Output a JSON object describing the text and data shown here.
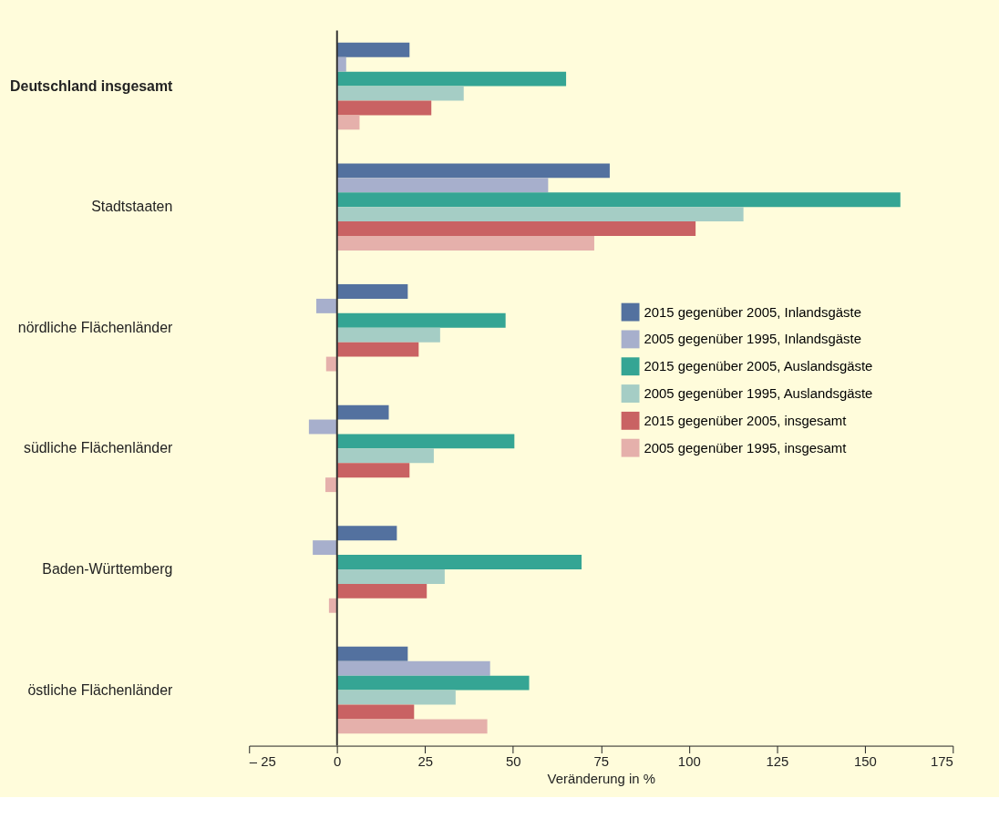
{
  "chart_data": {
    "type": "bar",
    "orientation": "horizontal",
    "xlabel": "Veränderung in %",
    "categories": [
      "Deutschland insgesamt",
      "Stadtstaaten",
      "nördliche Flächenländer",
      "südliche Flächenländer",
      "Baden-Württemberg",
      "östliche Flächenländer"
    ],
    "series": [
      {
        "name": "2015 gegenüber 2005, Inlandsgäste",
        "color": "#53719f",
        "values": [
          20.6,
          77.5,
          20.1,
          14.7,
          17.0,
          20.1
        ]
      },
      {
        "name": "2005 gegenüber 1995, Inlandsgäste",
        "color": "#a7afcc",
        "values": [
          2.6,
          60.0,
          -5.9,
          -8.0,
          -6.9,
          43.5
        ]
      },
      {
        "name": "2015 gegenüber 2005, Auslandsgäste",
        "color": "#35a594",
        "values": [
          65.1,
          160.1,
          47.9,
          50.4,
          69.5,
          54.6
        ]
      },
      {
        "name": "2005 gegenüber 1995, Auslandsgäste",
        "color": "#a5cdc5",
        "values": [
          36.0,
          115.5,
          29.3,
          27.5,
          30.6,
          33.7
        ]
      },
      {
        "name": "2015 gegenüber 2005, insgesamt",
        "color": "#c96263",
        "values": [
          26.8,
          101.9,
          23.2,
          20.6,
          25.5,
          21.9
        ]
      },
      {
        "name": "2005 gegenüber 1995, insgesamt",
        "color": "#e5b0ab",
        "values": [
          6.4,
          73.1,
          -3.1,
          -3.3,
          -2.3,
          42.7
        ]
      }
    ],
    "xlim": [
      -25,
      175
    ],
    "xticks": [
      {
        "value": -25,
        "label": "– 25"
      },
      0,
      25,
      50,
      75,
      100,
      125,
      150,
      175
    ],
    "ref_lines": [
      {
        "axis": "x",
        "value": 0
      }
    ],
    "legend": "right"
  }
}
